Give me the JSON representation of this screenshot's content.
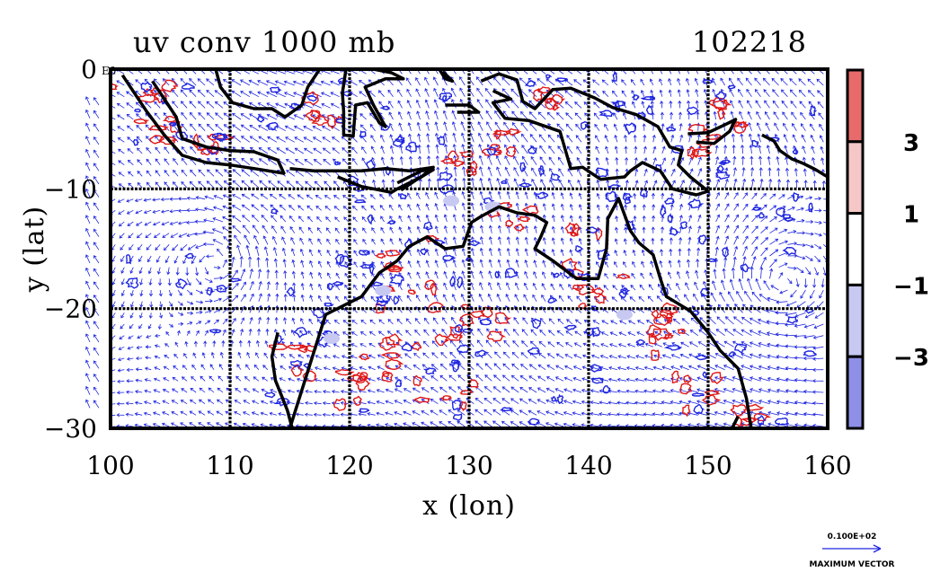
{
  "chart_data": {
    "type": "contour+vector",
    "title": "uv conv 1000 mb",
    "timestamp": "102218",
    "xlabel": "x (lon)",
    "ylabel": "y (lat)",
    "xlim": [
      100,
      160
    ],
    "ylim": [
      -30,
      0
    ],
    "x_ticks": [
      100,
      110,
      120,
      130,
      140,
      150,
      160
    ],
    "x_tick_labels": [
      "100",
      "110",
      "120",
      "130",
      "140",
      "150",
      "160"
    ],
    "y_ticks": [
      0,
      -10,
      -20,
      -30
    ],
    "y_tick_labels": [
      "0",
      "−10",
      "−20",
      "−30"
    ],
    "y_top_corner_label": "E0",
    "grid": true,
    "colorbar": {
      "levels": [
        {
          "label": "",
          "color": "#e86b6b"
        },
        {
          "label": "3",
          "color": "#f5c7c7"
        },
        {
          "label": "1",
          "color": "#ffffff"
        },
        {
          "label": "−1",
          "color": "#c7c9f2"
        },
        {
          "label": "−3",
          "color": "#8d90e6"
        }
      ],
      "tick_labels": [
        "3",
        "1",
        "−1",
        "−3"
      ]
    },
    "vector_color": "#1f26e0",
    "positive_contour_color": "#e01818",
    "negative_contour_color": "#1f26e0",
    "coastline_color": "#000000",
    "reference_vector": {
      "value_label": "0.100E+02",
      "caption": "MAXIMUM VECTOR"
    }
  }
}
